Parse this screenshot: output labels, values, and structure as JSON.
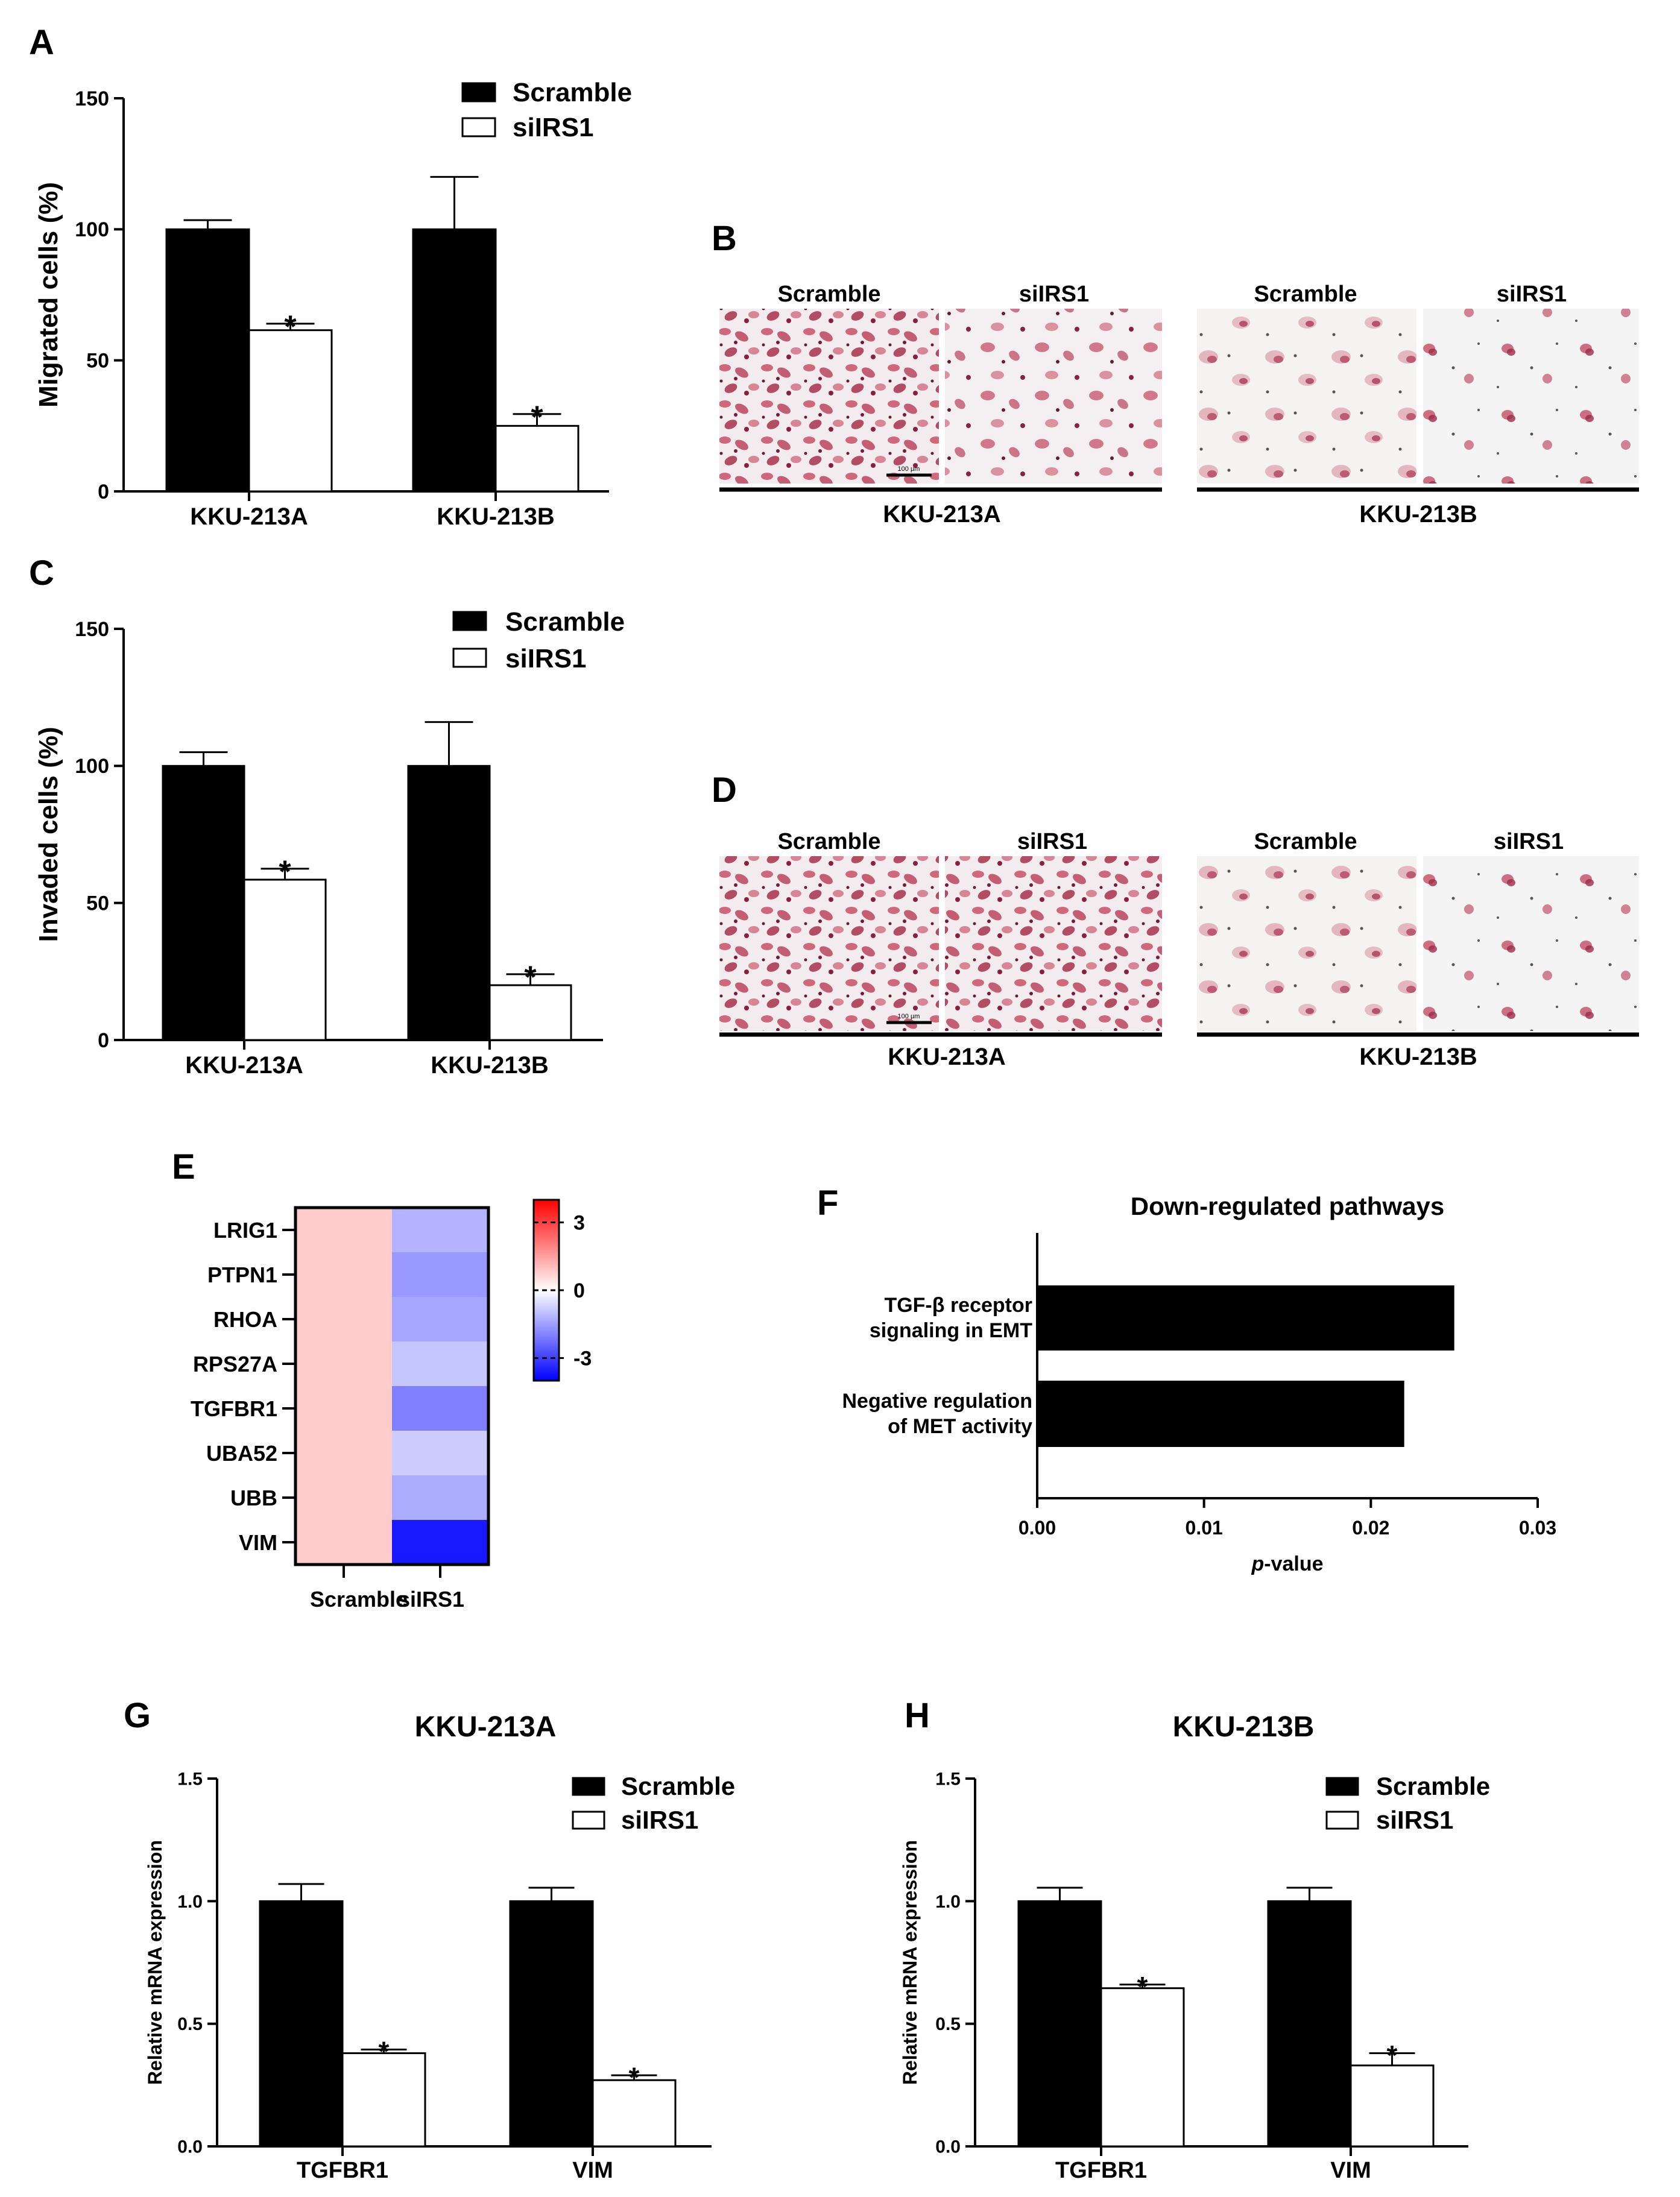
{
  "colors": {
    "scramble": "#000000",
    "siirs1": "#ffffff",
    "heat_high": "#ff0000",
    "heat_mid": "#ffffff",
    "heat_low": "#0000ff"
  },
  "panels": {
    "A": "A",
    "B": "B",
    "C": "C",
    "D": "D",
    "E": "E",
    "F": "F",
    "G": "G",
    "H": "H"
  },
  "legend": {
    "scramble": "Scramble",
    "siirs1": "siIRS1"
  },
  "star": "*",
  "chart_data": [
    {
      "id": "A",
      "type": "bar",
      "ylabel": "Migrated cells (%)",
      "ylim": [
        0,
        150
      ],
      "yticks": [
        "0",
        "50",
        "100",
        "150"
      ],
      "ytick_values": [
        0,
        50,
        100,
        150
      ],
      "categories": [
        "KKU-213A",
        "KKU-213B"
      ],
      "series": [
        {
          "name": "Scramble",
          "values": [
            100,
            100
          ],
          "errors": [
            3.5,
            20
          ]
        },
        {
          "name": "siIRS1",
          "values": [
            61.5,
            25
          ],
          "errors": [
            2.5,
            4.5
          ]
        }
      ],
      "significance": [
        "*",
        "*"
      ]
    },
    {
      "id": "C",
      "type": "bar",
      "ylabel": "Invaded cells (%)",
      "ylim": [
        0,
        150
      ],
      "yticks": [
        "0",
        "50",
        "100",
        "150"
      ],
      "ytick_values": [
        0,
        50,
        100,
        150
      ],
      "categories": [
        "KKU-213A",
        "KKU-213B"
      ],
      "series": [
        {
          "name": "Scramble",
          "values": [
            100,
            100
          ],
          "errors": [
            5,
            16
          ]
        },
        {
          "name": "siIRS1",
          "values": [
            58.5,
            20
          ],
          "errors": [
            4,
            4
          ]
        }
      ],
      "significance": [
        "*",
        "*"
      ]
    },
    {
      "id": "E",
      "type": "heatmap",
      "rows": [
        "LRIG1",
        "PTPN1",
        "RHOA",
        "RPS27A",
        "TGFBR1",
        "UBA52",
        "UBB",
        "VIM"
      ],
      "columns": [
        "Scramble",
        "siIRS1"
      ],
      "values": [
        [
          0.8,
          -1.2
        ],
        [
          0.8,
          -1.6
        ],
        [
          0.8,
          -1.4
        ],
        [
          0.8,
          -0.9
        ],
        [
          0.8,
          -2.0
        ],
        [
          0.8,
          -0.8
        ],
        [
          0.8,
          -1.3
        ],
        [
          0.8,
          -3.6
        ]
      ],
      "colorbar_ticks": [
        "3",
        "0",
        "-3"
      ],
      "colorbar_tick_values": [
        3,
        0,
        -3
      ],
      "colorbar_range": [
        -4,
        4
      ]
    },
    {
      "id": "F",
      "type": "bar",
      "orientation": "horizontal",
      "title": "Down-regulated pathways",
      "categories": [
        [
          "TGF-β receptor",
          "signaling in EMT"
        ],
        [
          "Negative regulation",
          "of MET activity"
        ]
      ],
      "values": [
        0.025,
        0.022
      ],
      "xlabel": "p-value",
      "xlabel_italic": "p",
      "xlabel_rest": "-value",
      "xlim": [
        0,
        0.03
      ],
      "xticks": [
        "0.00",
        "0.01",
        "0.02",
        "0.03"
      ],
      "xtick_values": [
        0,
        0.01,
        0.02,
        0.03
      ]
    },
    {
      "id": "G",
      "type": "bar",
      "title": "KKU-213A",
      "ylabel": "Relative mRNA expression",
      "ylim": [
        0,
        1.5
      ],
      "yticks": [
        "0.0",
        "0.5",
        "1.0",
        "1.5"
      ],
      "ytick_values": [
        0,
        0.5,
        1.0,
        1.5
      ],
      "categories": [
        "TGFBR1",
        "VIM"
      ],
      "series": [
        {
          "name": "Scramble",
          "values": [
            1.0,
            1.0
          ],
          "errors": [
            0.07,
            0.055
          ]
        },
        {
          "name": "siIRS1",
          "values": [
            0.38,
            0.27
          ],
          "errors": [
            0.015,
            0.02
          ]
        }
      ],
      "significance": [
        "*",
        "*"
      ]
    },
    {
      "id": "H",
      "type": "bar",
      "title": "KKU-213B",
      "ylabel": "Relative mRNA expression",
      "ylim": [
        0,
        1.5
      ],
      "yticks": [
        "0.0",
        "0.5",
        "1.0",
        "1.5"
      ],
      "ytick_values": [
        0,
        0.5,
        1.0,
        1.5
      ],
      "categories": [
        "TGFBR1",
        "VIM"
      ],
      "series": [
        {
          "name": "Scramble",
          "values": [
            1.0,
            1.0
          ],
          "errors": [
            0.055,
            0.055
          ]
        },
        {
          "name": "siIRS1",
          "values": [
            0.645,
            0.33
          ],
          "errors": [
            0.015,
            0.05
          ]
        }
      ],
      "significance": [
        "*",
        "*"
      ]
    }
  ],
  "micrographs": {
    "B": {
      "headers": [
        "Scramble",
        "siIRS1",
        "Scramble",
        "siIRS1"
      ],
      "groups": [
        "KKU-213A",
        "KKU-213B"
      ],
      "scale": "100 µm"
    },
    "D": {
      "headers": [
        "Scramble",
        "siIRS1",
        "Scramble",
        "siIRS1"
      ],
      "groups": [
        "KKU-213A",
        "KKU-213B"
      ],
      "scale": "100 µm"
    }
  }
}
